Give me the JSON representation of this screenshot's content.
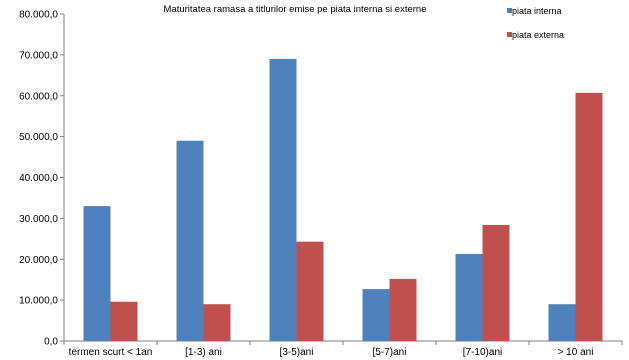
{
  "chart_data": {
    "type": "bar",
    "title": "Maturitatea ramasa a titlurilor emise pe piata interna si externe",
    "xlabel": "",
    "ylabel": "",
    "categories": [
      "termen scurt < 1an",
      "[1-3) ani",
      "[3-5)ani",
      "[5-7)ani",
      "[7-10)ani",
      "> 10 ani"
    ],
    "series": [
      {
        "name": "piata interna",
        "color": "#4f81bd",
        "values": [
          33000,
          49000,
          69000,
          12700,
          21300,
          9000
        ]
      },
      {
        "name": "piata externa",
        "color": "#c0504d",
        "values": [
          9600,
          9000,
          24300,
          15200,
          28400,
          60700
        ]
      }
    ],
    "ylim": [
      0,
      80000
    ],
    "yticks": [
      0,
      10000,
      20000,
      30000,
      40000,
      50000,
      60000,
      70000,
      80000
    ],
    "ytick_labels": [
      "0,0",
      "10.000,0",
      "20.000,0",
      "30.000,0",
      "40.000,0",
      "50.000,0",
      "60.000,0",
      "70.000,0",
      "80.000,0"
    ],
    "grid": false,
    "legend": "top-right"
  }
}
